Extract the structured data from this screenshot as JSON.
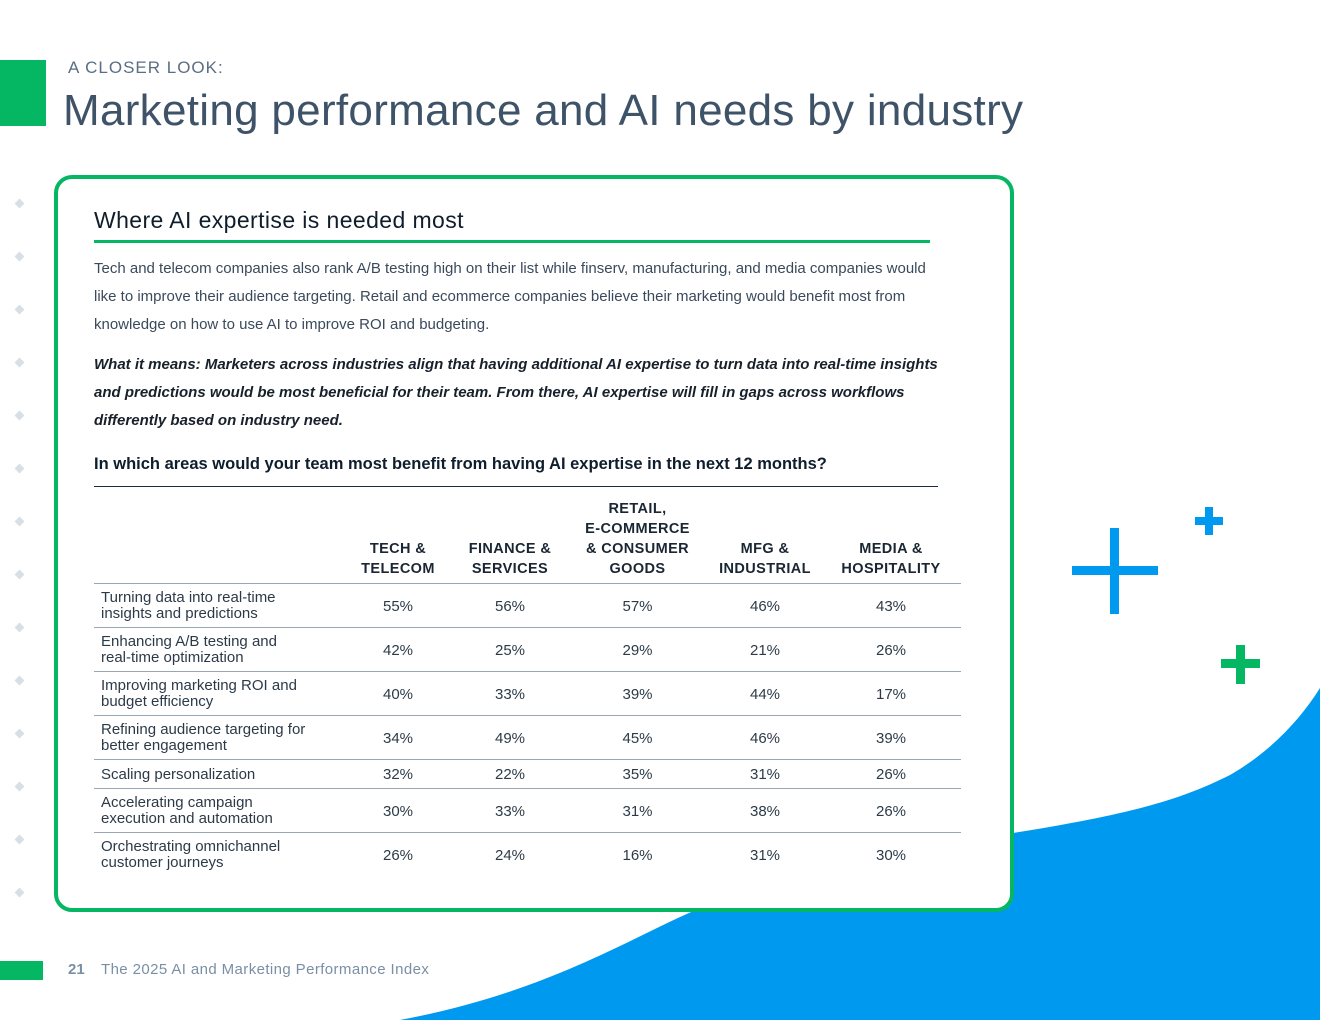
{
  "header": {
    "eyebrow": "A CLOSER LOOK:",
    "title": "Marketing performance and AI needs by industry"
  },
  "card": {
    "title": "Where AI expertise is needed most",
    "body": "Tech and telecom companies also rank A/B testing high on their list while finserv, manufacturing, and media companies would like to improve their audience targeting. Retail and ecommerce companies believe their marketing would benefit most from knowledge on how to use AI to improve ROI and budgeting.",
    "insight": "What it means: Marketers across industries align that having additional AI expertise to turn data into real-time insights and predictions would be most beneficial for their team. From there, AI expertise will fill in gaps across workflows differently based on industry need.",
    "question": "In which areas would your team most benefit from having AI expertise in the next 12 months?"
  },
  "table": {
    "columns": [
      [
        "TECH &",
        "TELECOM"
      ],
      [
        "FINANCE &",
        "SERVICES"
      ],
      [
        "RETAIL,",
        "E-COMMERCE",
        "& CONSUMER",
        "GOODS"
      ],
      [
        "MFG &",
        "INDUSTRIAL"
      ],
      [
        "MEDIA &",
        "HOSPITALITY"
      ]
    ],
    "rows": [
      {
        "label": [
          "Turning data into real-time",
          "insights and predictions"
        ],
        "values": [
          "55%",
          "56%",
          "57%",
          "46%",
          "43%"
        ]
      },
      {
        "label": [
          "Enhancing A/B testing and",
          "real-time optimization"
        ],
        "values": [
          "42%",
          "25%",
          "29%",
          "21%",
          "26%"
        ]
      },
      {
        "label": [
          "Improving marketing ROI and",
          "budget efficiency"
        ],
        "values": [
          "40%",
          "33%",
          "39%",
          "44%",
          "17%"
        ]
      },
      {
        "label": [
          "Refining audience targeting for",
          "better engagement"
        ],
        "values": [
          "34%",
          "49%",
          "45%",
          "46%",
          "39%"
        ]
      },
      {
        "label": [
          "Scaling personalization"
        ],
        "values": [
          "32%",
          "22%",
          "35%",
          "31%",
          "26%"
        ]
      },
      {
        "label": [
          "Accelerating campaign",
          "execution and automation"
        ],
        "values": [
          "30%",
          "33%",
          "31%",
          "38%",
          "26%"
        ]
      },
      {
        "label": [
          "Orchestrating omnichannel",
          "customer journeys"
        ],
        "values": [
          "26%",
          "24%",
          "16%",
          "31%",
          "30%"
        ]
      }
    ]
  },
  "footer": {
    "page_number": "21",
    "report_name": "The 2025 AI and Marketing Performance Index"
  },
  "colors": {
    "brand_green": "#05b663",
    "brand_blue": "#0099f0"
  },
  "decor": {
    "icons": [
      "plus-icon",
      "plus-icon",
      "plus-icon"
    ]
  }
}
